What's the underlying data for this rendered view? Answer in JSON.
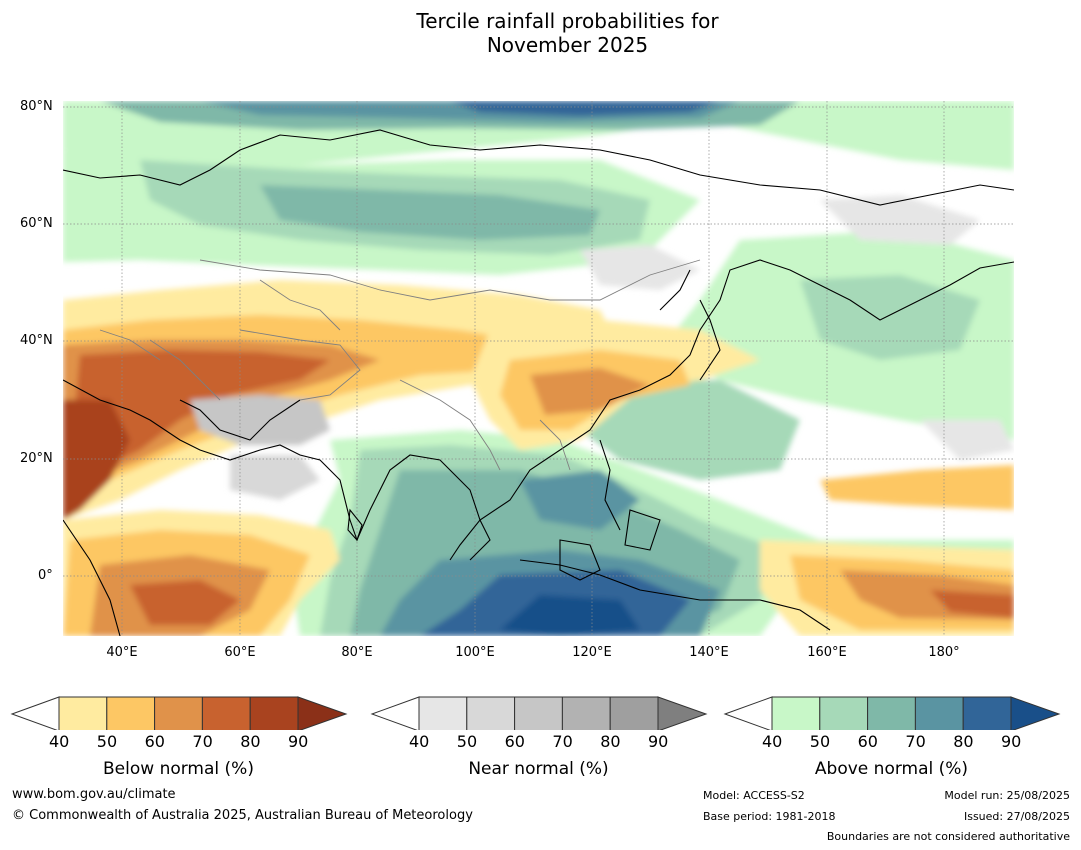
{
  "title_line1": "Tercile rainfall probabilities for",
  "title_line2": "November 2025",
  "map": {
    "latitude_labels": [
      "80°N",
      "60°N",
      "40°N",
      "20°N",
      "0°"
    ],
    "longitude_labels": [
      "40°E",
      "60°E",
      "80°E",
      "100°E",
      "120°E",
      "140°E",
      "160°E",
      "180°"
    ],
    "extent": {
      "lon_min": 30,
      "lon_max": 192,
      "lat_min": -10,
      "lat_max": 81
    },
    "gridlines": true,
    "coastline_color": "#000000",
    "border_color": "#808080"
  },
  "colorbars": {
    "below": {
      "title": "Below normal (%)",
      "ticks": [
        "40",
        "50",
        "60",
        "70",
        "80",
        "90"
      ],
      "colors": [
        "#ffeba0",
        "#fdc764",
        "#e0924a",
        "#c8622f",
        "#a9431f",
        "#8b3018"
      ]
    },
    "near": {
      "title": "Near normal (%)",
      "ticks": [
        "40",
        "50",
        "60",
        "70",
        "80",
        "90"
      ],
      "colors": [
        "#e6e6e6",
        "#d8d8d8",
        "#c6c6c6",
        "#b2b2b2",
        "#9f9f9f",
        "#7f7f7f"
      ]
    },
    "above": {
      "title": "Above normal (%)",
      "ticks": [
        "40",
        "50",
        "60",
        "70",
        "80",
        "90"
      ],
      "colors": [
        "#c8f7c8",
        "#a6d9b8",
        "#7fb8a8",
        "#5a94a2",
        "#316598",
        "#194f89"
      ]
    }
  },
  "footer": {
    "website": "www.bom.gov.au/climate",
    "copyright": "© Commonwealth of Australia 2025, Australian Bureau of Meteorology",
    "model": "Model: ACCESS-S2",
    "base_period": "Base period: 1981-2018",
    "model_run": "Model run: 25/08/2025",
    "issued": "Issued: 27/08/2025",
    "boundaries": "Boundaries are not considered authoritative"
  }
}
